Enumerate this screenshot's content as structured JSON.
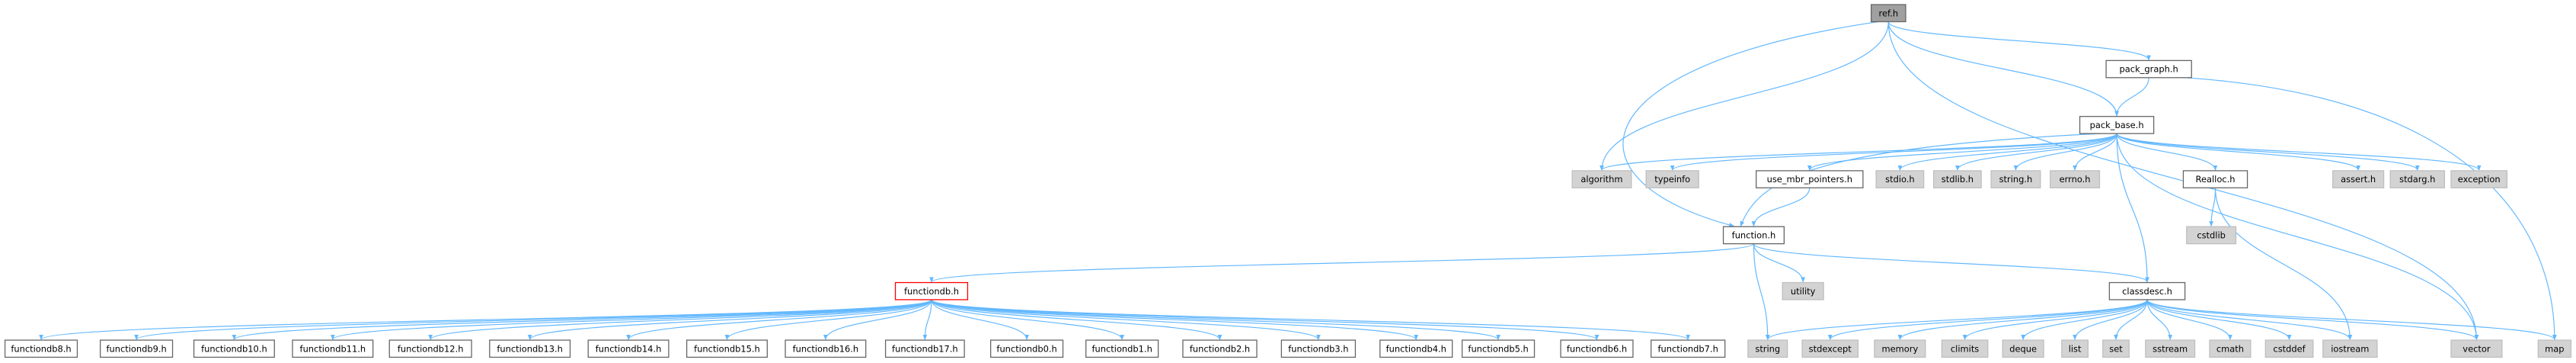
{
  "nodes": [
    "ref.h",
    "pack_graph.h",
    "pack_base.h",
    "algorithm",
    "typeinfo",
    "use_mbr_pointers.h",
    "stdio.h",
    "stdlib.h",
    "string.h",
    "errno.h",
    "Realloc.h",
    "assert.h",
    "stdarg.h",
    "exception",
    "cstdlib",
    "function.h",
    "utility",
    "functiondb.h",
    "classdesc.h",
    "functiondb8.h",
    "functiondb9.h",
    "functiondb10.h",
    "functiondb11.h",
    "functiondb12.h",
    "functiondb13.h",
    "functiondb14.h",
    "functiondb15.h",
    "functiondb16.h",
    "functiondb17.h",
    "functiondb0.h",
    "functiondb1.h",
    "functiondb2.h",
    "functiondb3.h",
    "functiondb4.h",
    "functiondb5.h",
    "functiondb6.h",
    "functiondb7.h",
    "string",
    "stdexcept",
    "memory",
    "climits",
    "deque",
    "list",
    "set",
    "sstream",
    "cmath",
    "cstddef",
    "iostream",
    "vector",
    "map"
  ]
}
